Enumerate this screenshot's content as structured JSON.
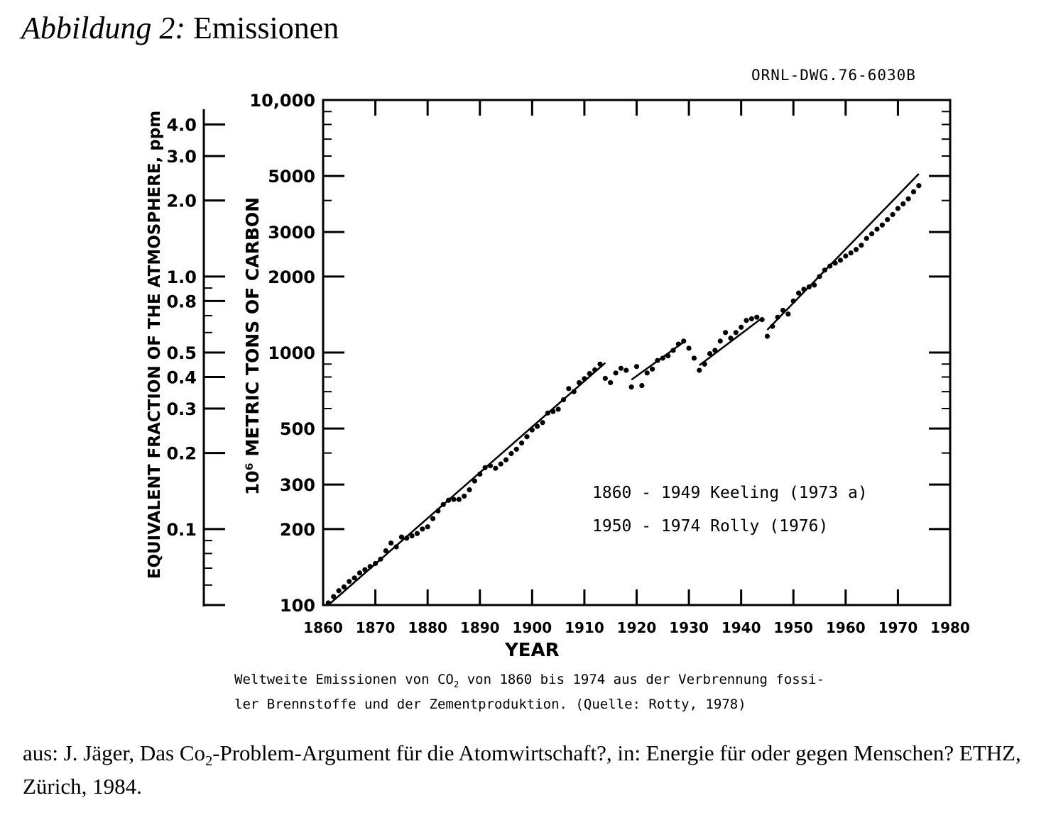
{
  "heading": {
    "label": "Abbildung 2:",
    "title": "Emissionen"
  },
  "drawing_number": "ORNL-DWG.76-6030B",
  "caption": {
    "line1_prefix": "Weltweite Emissionen von CO",
    "line1_sub": "2",
    "line1_suffix": " von 1860 bis 1974 aus der Verbrennung fossi-",
    "line2": "ler Brennstoffe und der Zementproduktion. (Quelle: Rotty, 1978)"
  },
  "source": {
    "part1": "aus: J. Jäger, Das Co",
    "sub": "2",
    "part2": "-Problem-Argument für die Atomwirtschaft?, in: Energie für oder gegen Menschen? ETHZ, Zürich, 1984."
  },
  "chart_data": {
    "type": "scatter",
    "xlabel": "YEAR",
    "ylabel": "10⁶ METRIC TONS OF CARBON",
    "y2label": "EQUIVALENT FRACTION OF THE ATMOSPHERE, ppm",
    "xlim": [
      1860,
      1980
    ],
    "ylim": [
      100,
      10000
    ],
    "yscale": "log",
    "xticks": [
      "1860",
      "1870",
      "1880",
      "1890",
      "1900",
      "1910",
      "1920",
      "1930",
      "1940",
      "1950",
      "1960",
      "1970",
      "1980"
    ],
    "yticks": [
      {
        "value": 100,
        "label": "100"
      },
      {
        "value": 200,
        "label": "200"
      },
      {
        "value": 300,
        "label": "300"
      },
      {
        "value": 500,
        "label": "500"
      },
      {
        "value": 1000,
        "label": "1000"
      },
      {
        "value": 2000,
        "label": "2000"
      },
      {
        "value": 3000,
        "label": "3000"
      },
      {
        "value": 5000,
        "label": "5000"
      },
      {
        "value": 10000,
        "label": "10,000"
      }
    ],
    "y2ticks": [
      {
        "value": 0.1,
        "label": "0.1"
      },
      {
        "value": 0.2,
        "label": "0.2"
      },
      {
        "value": 0.3,
        "label": "0.3"
      },
      {
        "value": 0.4,
        "label": "0.4"
      },
      {
        "value": 0.5,
        "label": "0.5"
      },
      {
        "value": 0.8,
        "label": "0.8"
      },
      {
        "value": 1.0,
        "label": "1.0"
      },
      {
        "value": 2.0,
        "label": "2.0"
      },
      {
        "value": 3.0,
        "label": "3.0"
      },
      {
        "value": 4.0,
        "label": "4.0"
      }
    ],
    "y2lim": [
      0.05,
      5
    ],
    "legend": [
      "1860 - 1949 Keeling (1973 a)",
      "1950 - 1974 Rolly (1976)"
    ],
    "legend_position": "lower-right",
    "series": [
      {
        "x": [
          1861,
          1862,
          1863,
          1864,
          1865,
          1866,
          1867,
          1868,
          1869,
          1870,
          1871,
          1872,
          1873,
          1874,
          1875,
          1876,
          1877,
          1878,
          1879,
          1880,
          1881,
          1882,
          1883,
          1884,
          1885,
          1886,
          1887,
          1888,
          1889,
          1890,
          1891,
          1892,
          1893,
          1894,
          1895,
          1896,
          1897,
          1898,
          1899,
          1900,
          1901,
          1902,
          1903,
          1904,
          1905,
          1906,
          1907,
          1908,
          1909,
          1910,
          1911,
          1912,
          1913,
          1914,
          1915,
          1916,
          1917,
          1918,
          1919,
          1920,
          1921,
          1922,
          1923,
          1924,
          1925,
          1926,
          1927,
          1928,
          1929,
          1930,
          1931,
          1932,
          1933,
          1934,
          1935,
          1936,
          1937,
          1938,
          1939,
          1940,
          1941,
          1942,
          1943,
          1944,
          1945,
          1946,
          1947,
          1948,
          1949,
          1950,
          1951,
          1952,
          1953,
          1954,
          1955,
          1956,
          1957,
          1958,
          1959,
          1960,
          1961,
          1962,
          1963,
          1964,
          1965,
          1966,
          1967,
          1968,
          1969,
          1970,
          1971,
          1972,
          1973,
          1974
        ],
        "y": [
          102,
          108,
          114,
          118,
          124,
          128,
          134,
          138,
          142,
          146,
          152,
          164,
          176,
          170,
          186,
          184,
          188,
          192,
          200,
          204,
          220,
          236,
          250,
          260,
          262,
          262,
          270,
          286,
          310,
          330,
          350,
          356,
          348,
          362,
          376,
          398,
          414,
          438,
          464,
          494,
          510,
          528,
          576,
          584,
          596,
          650,
          720,
          700,
          760,
          788,
          826,
          854,
          900,
          790,
          760,
          830,
          866,
          850,
          730,
          880,
          740,
          830,
          860,
          930,
          950,
          970,
          1020,
          1080,
          1110,
          1040,
          950,
          850,
          900,
          990,
          1020,
          1110,
          1200,
          1140,
          1200,
          1260,
          1340,
          1360,
          1380,
          1350,
          1160,
          1270,
          1380,
          1470,
          1420,
          1600,
          1720,
          1780,
          1820,
          1850,
          2000,
          2120,
          2200,
          2260,
          2320,
          2410,
          2480,
          2560,
          2660,
          2830,
          2950,
          3080,
          3200,
          3360,
          3520,
          3720,
          3880,
          4060,
          4330,
          4580
        ]
      }
    ],
    "trend_lines": [
      {
        "x": [
          1861,
          1914
        ],
        "y": [
          100,
          910
        ]
      },
      {
        "x": [
          1919,
          1929
        ],
        "y": [
          780,
          1100
        ]
      },
      {
        "x": [
          1932,
          1944
        ],
        "y": [
          890,
          1370
        ]
      },
      {
        "x": [
          1945,
          1974
        ],
        "y": [
          1230,
          5100
        ]
      }
    ]
  }
}
